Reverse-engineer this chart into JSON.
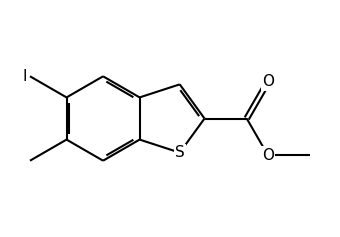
{
  "bg_color": "#ffffff",
  "line_color": "#000000",
  "lw": 1.5,
  "fig_width": 3.4,
  "fig_height": 2.37,
  "dpi": 100,
  "font_size": 11,
  "S_label": "S",
  "I_label": "I",
  "O_label": "O"
}
